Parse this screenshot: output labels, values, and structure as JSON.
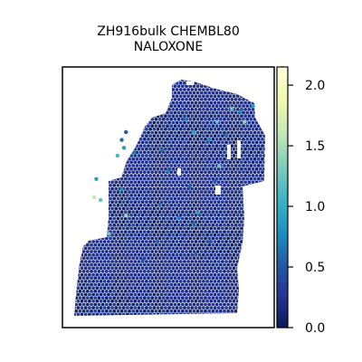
{
  "chart_data": {
    "type": "scatter",
    "title_line1": "ZH916bulk CHEMBL80",
    "title_line2": "NALOXONE",
    "xlabel": "",
    "ylabel": "",
    "grid": false,
    "colormap": "YlGnBu_r",
    "colorbar": {
      "range": [
        0.0,
        2.15
      ],
      "ticks": [
        0.0,
        0.5,
        1.0,
        1.5,
        2.0
      ],
      "tick_labels": [
        "0.0",
        "0.5",
        "1.0",
        "1.5",
        "2.0"
      ]
    },
    "highlight_points": [
      {
        "x": 0.22,
        "y": 0.36,
        "v": 1.25
      },
      {
        "x": 0.3,
        "y": 0.43,
        "v": 1.45
      },
      {
        "x": 0.15,
        "y": 0.5,
        "v": 1.6
      },
      {
        "x": 0.18,
        "y": 0.49,
        "v": 1.2
      },
      {
        "x": 0.16,
        "y": 0.57,
        "v": 0.9
      },
      {
        "x": 0.28,
        "y": 0.53,
        "v": 0.8
      },
      {
        "x": 0.26,
        "y": 0.66,
        "v": 1.1
      },
      {
        "x": 0.29,
        "y": 0.69,
        "v": 0.9
      },
      {
        "x": 0.34,
        "y": 0.67,
        "v": 0.7
      },
      {
        "x": 0.28,
        "y": 0.72,
        "v": 0.6
      },
      {
        "x": 0.3,
        "y": 0.75,
        "v": 0.5
      },
      {
        "x": 0.47,
        "y": 0.68,
        "v": 0.6
      },
      {
        "x": 0.58,
        "y": 0.8,
        "v": 0.7
      },
      {
        "x": 0.62,
        "y": 0.75,
        "v": 0.9
      },
      {
        "x": 0.73,
        "y": 0.79,
        "v": 1.2
      },
      {
        "x": 0.8,
        "y": 0.84,
        "v": 1.25
      },
      {
        "x": 0.84,
        "y": 0.83,
        "v": 0.8
      },
      {
        "x": 0.9,
        "y": 0.85,
        "v": 0.9
      },
      {
        "x": 0.86,
        "y": 0.79,
        "v": 1.4
      },
      {
        "x": 0.77,
        "y": 0.74,
        "v": 0.6
      },
      {
        "x": 0.69,
        "y": 0.72,
        "v": 0.8
      },
      {
        "x": 0.74,
        "y": 0.62,
        "v": 1.3
      },
      {
        "x": 0.5,
        "y": 0.6,
        "v": 0.7
      },
      {
        "x": 0.6,
        "y": 0.54,
        "v": 0.6
      },
      {
        "x": 0.72,
        "y": 0.56,
        "v": 0.5
      },
      {
        "x": 0.55,
        "y": 0.42,
        "v": 0.7
      },
      {
        "x": 0.62,
        "y": 0.4,
        "v": 0.6
      },
      {
        "x": 0.45,
        "y": 0.33,
        "v": 0.5
      },
      {
        "x": 0.63,
        "y": 0.28,
        "v": 0.5
      },
      {
        "x": 0.7,
        "y": 0.33,
        "v": 0.5
      },
      {
        "x": 0.38,
        "y": 0.26,
        "v": 0.5
      },
      {
        "x": 0.64,
        "y": 0.44,
        "v": 0.9
      },
      {
        "x": 0.46,
        "y": 0.47,
        "v": 0.6
      }
    ]
  }
}
